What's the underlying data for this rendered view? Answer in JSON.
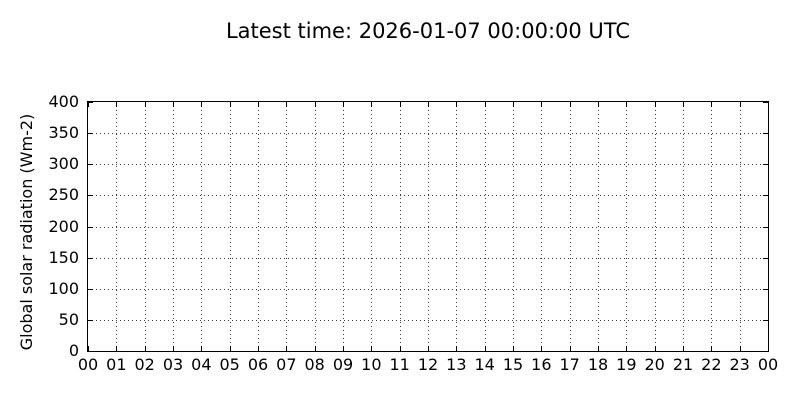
{
  "page": {
    "background_color": "#ffffff",
    "text_color": "#000000"
  },
  "chart_data": {
    "type": "line",
    "title": "Latest time: 2026-01-07 00:00:00 UTC",
    "xlabel": "",
    "ylabel": "Global solar radiation (Wm-2)",
    "x_tick_labels": [
      "00",
      "01",
      "02",
      "03",
      "04",
      "05",
      "06",
      "07",
      "08",
      "09",
      "10",
      "11",
      "12",
      "13",
      "14",
      "15",
      "16",
      "17",
      "18",
      "19",
      "20",
      "21",
      "22",
      "23",
      "00"
    ],
    "y_ticks": [
      0,
      50,
      100,
      150,
      200,
      250,
      300,
      350,
      400
    ],
    "y_tick_labels": [
      "0",
      "50",
      "100",
      "150",
      "200",
      "250",
      "300",
      "350",
      "400"
    ],
    "xlim": [
      0,
      24
    ],
    "ylim": [
      0,
      400
    ],
    "grid": true,
    "grid_linestyle": "dotted",
    "tick_direction": "in",
    "legend": null,
    "series": [],
    "colors": {
      "axis": "#000000",
      "grid_dots": "#3b3b3b",
      "plot_background": "#ffffff"
    }
  }
}
